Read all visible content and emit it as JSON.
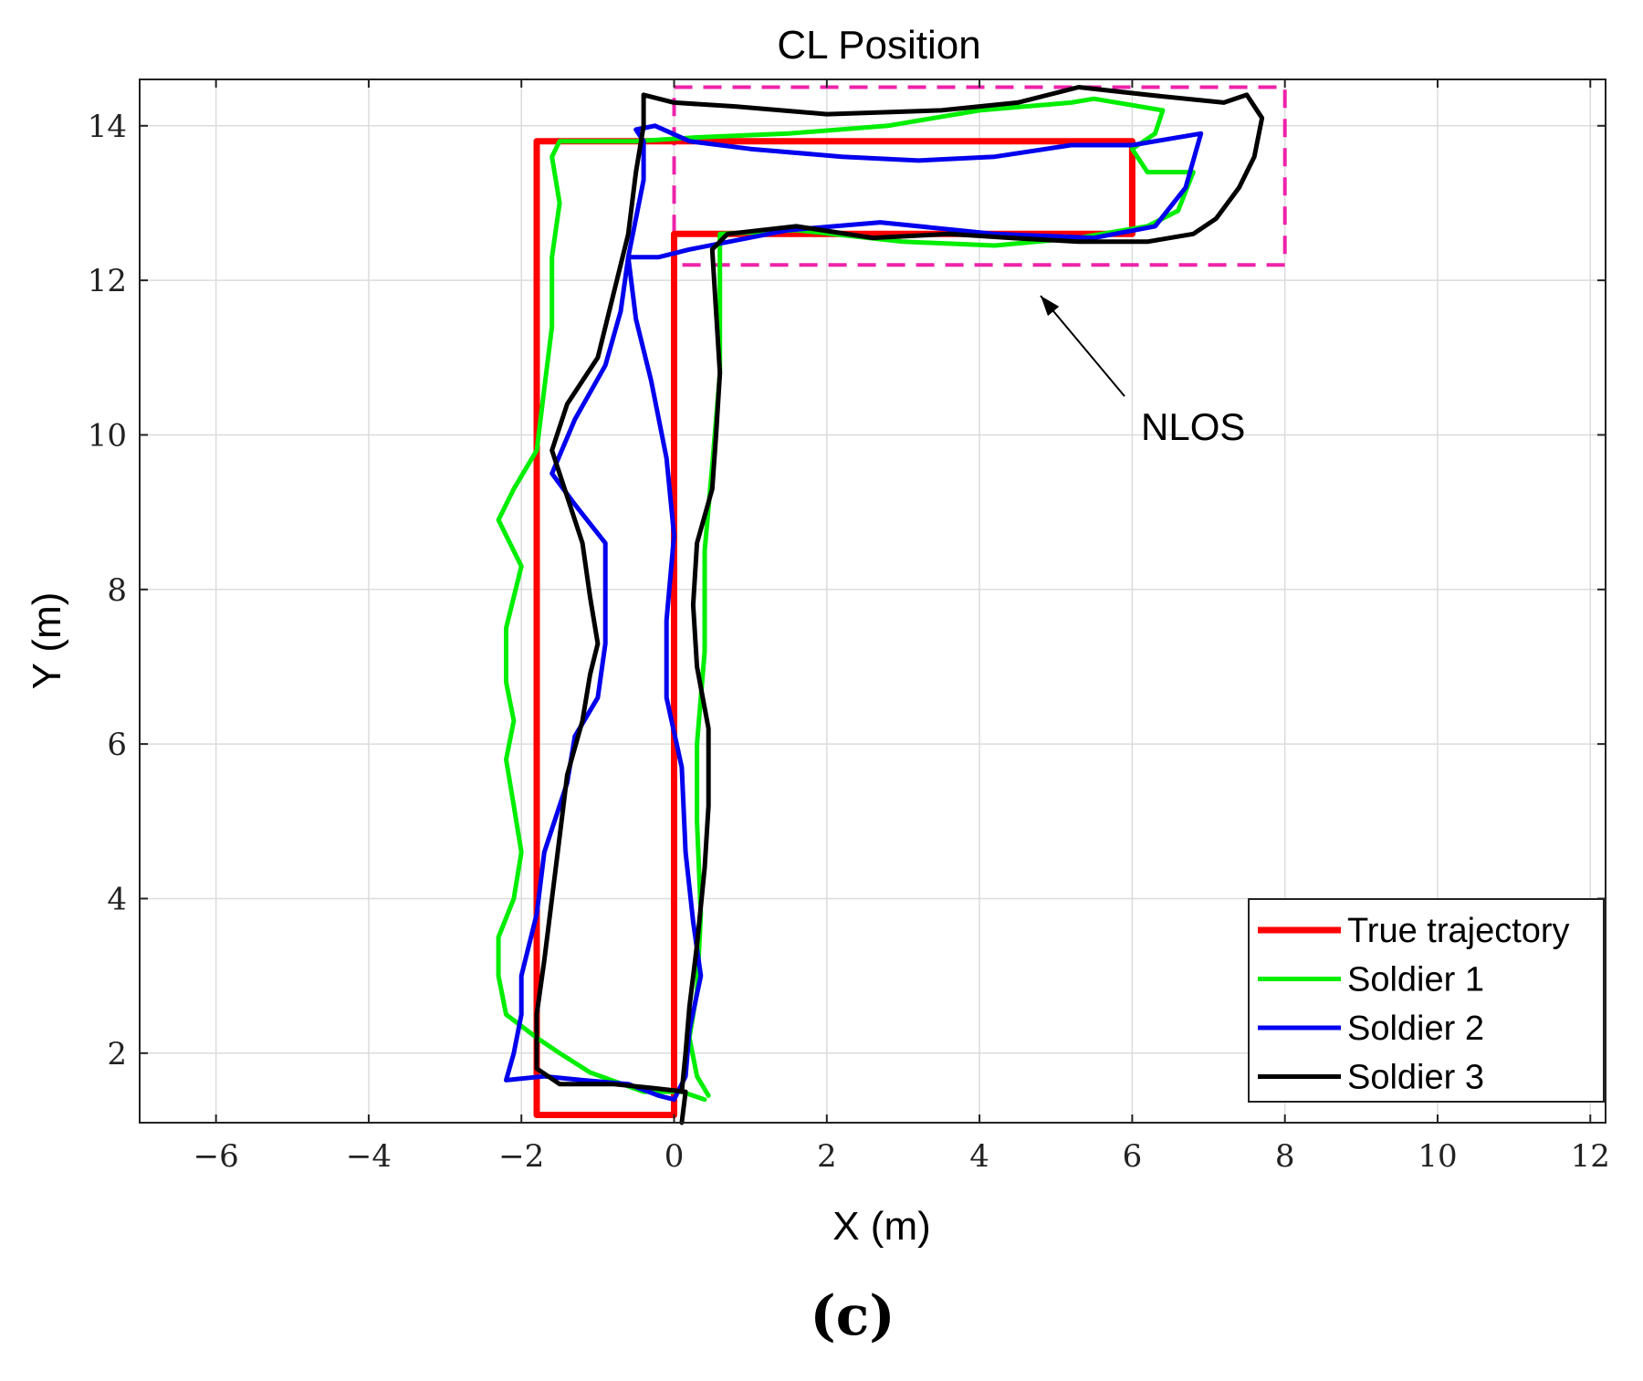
{
  "chart_data": {
    "type": "line",
    "title": "CL Position",
    "xlabel": "X (m)",
    "ylabel": "Y (m)",
    "xlim": [
      -7,
      12.2
    ],
    "ylim": [
      1.1,
      14.6
    ],
    "xticks": [
      -6,
      -4,
      -2,
      0,
      2,
      4,
      6,
      8,
      10,
      12
    ],
    "yticks": [
      2,
      4,
      6,
      8,
      10,
      12,
      14
    ],
    "xtick_labels": [
      "−6",
      "−4",
      "−2",
      "0",
      "2",
      "4",
      "6",
      "8",
      "10",
      "12"
    ],
    "ytick_labels": [
      "2",
      "4",
      "6",
      "8",
      "10",
      "12",
      "14"
    ],
    "grid": true,
    "legend_position": "bottom-right",
    "series": [
      {
        "name": "True trajectory",
        "color": "#ff0000",
        "points": [
          [
            -1.8,
            1.2
          ],
          [
            -1.8,
            13.8
          ],
          [
            6.0,
            13.8
          ],
          [
            6.0,
            12.6
          ],
          [
            0.0,
            12.6
          ],
          [
            0.0,
            1.2
          ],
          [
            -1.8,
            1.2
          ]
        ]
      },
      {
        "name": "Soldier 1",
        "color": "#00ee00",
        "points": [
          [
            0.4,
            1.4
          ],
          [
            0.1,
            1.5
          ],
          [
            -0.4,
            1.5
          ],
          [
            -1.1,
            1.75
          ],
          [
            -1.5,
            2.0
          ],
          [
            -1.8,
            2.2
          ],
          [
            -2.2,
            2.5
          ],
          [
            -2.3,
            3.0
          ],
          [
            -2.3,
            3.5
          ],
          [
            -2.1,
            4.0
          ],
          [
            -2.0,
            4.6
          ],
          [
            -2.1,
            5.2
          ],
          [
            -2.2,
            5.8
          ],
          [
            -2.1,
            6.3
          ],
          [
            -2.2,
            6.8
          ],
          [
            -2.2,
            7.5
          ],
          [
            -2.0,
            8.3
          ],
          [
            -2.3,
            8.9
          ],
          [
            -2.1,
            9.3
          ],
          [
            -1.8,
            9.8
          ],
          [
            -1.7,
            10.6
          ],
          [
            -1.6,
            11.4
          ],
          [
            -1.6,
            12.3
          ],
          [
            -1.5,
            13.0
          ],
          [
            -1.6,
            13.6
          ],
          [
            -1.5,
            13.8
          ],
          [
            -0.5,
            13.8
          ],
          [
            0.3,
            13.85
          ],
          [
            1.5,
            13.9
          ],
          [
            2.8,
            14.0
          ],
          [
            4.0,
            14.2
          ],
          [
            5.2,
            14.3
          ],
          [
            5.5,
            14.35
          ],
          [
            6.4,
            14.2
          ],
          [
            6.3,
            13.9
          ],
          [
            6.0,
            13.7
          ],
          [
            6.2,
            13.4
          ],
          [
            6.8,
            13.4
          ],
          [
            6.6,
            12.9
          ],
          [
            6.2,
            12.7
          ],
          [
            5.3,
            12.55
          ],
          [
            4.2,
            12.45
          ],
          [
            3.0,
            12.5
          ],
          [
            1.6,
            12.65
          ],
          [
            0.6,
            12.6
          ],
          [
            0.6,
            11.8
          ],
          [
            0.6,
            10.8
          ],
          [
            0.5,
            9.6
          ],
          [
            0.4,
            8.5
          ],
          [
            0.4,
            7.2
          ],
          [
            0.3,
            6.0
          ],
          [
            0.3,
            5.0
          ],
          [
            0.35,
            3.8
          ],
          [
            0.3,
            2.8
          ],
          [
            0.2,
            2.2
          ],
          [
            0.3,
            1.7
          ],
          [
            0.45,
            1.45
          ]
        ]
      },
      {
        "name": "Soldier 2",
        "color": "#0000ee",
        "points": [
          [
            0.0,
            1.4
          ],
          [
            -0.2,
            1.45
          ],
          [
            -0.6,
            1.6
          ],
          [
            -1.2,
            1.65
          ],
          [
            -1.7,
            1.7
          ],
          [
            -2.2,
            1.65
          ],
          [
            -2.1,
            2.0
          ],
          [
            -2.0,
            2.5
          ],
          [
            -2.0,
            3.0
          ],
          [
            -1.8,
            3.8
          ],
          [
            -1.7,
            4.6
          ],
          [
            -1.4,
            5.5
          ],
          [
            -1.3,
            6.1
          ],
          [
            -1.0,
            6.6
          ],
          [
            -0.9,
            7.3
          ],
          [
            -0.9,
            8.0
          ],
          [
            -0.9,
            8.6
          ],
          [
            -1.3,
            9.1
          ],
          [
            -1.6,
            9.5
          ],
          [
            -1.3,
            10.2
          ],
          [
            -0.9,
            10.9
          ],
          [
            -0.7,
            11.6
          ],
          [
            -0.6,
            12.3
          ],
          [
            -0.5,
            12.8
          ],
          [
            -0.4,
            13.3
          ],
          [
            -0.4,
            13.8
          ],
          [
            -0.5,
            13.95
          ],
          [
            -0.25,
            14.0
          ],
          [
            0.2,
            13.8
          ],
          [
            1.0,
            13.7
          ],
          [
            2.2,
            13.6
          ],
          [
            3.2,
            13.55
          ],
          [
            4.2,
            13.6
          ],
          [
            5.2,
            13.75
          ],
          [
            6.0,
            13.75
          ],
          [
            6.9,
            13.9
          ],
          [
            6.7,
            13.2
          ],
          [
            6.3,
            12.7
          ],
          [
            5.5,
            12.55
          ],
          [
            4.2,
            12.6
          ],
          [
            2.7,
            12.75
          ],
          [
            1.5,
            12.65
          ],
          [
            0.2,
            12.4
          ],
          [
            -0.2,
            12.3
          ],
          [
            -0.6,
            12.3
          ],
          [
            -0.5,
            11.5
          ],
          [
            -0.3,
            10.7
          ],
          [
            -0.1,
            9.7
          ],
          [
            0.0,
            8.7
          ],
          [
            -0.1,
            7.6
          ],
          [
            -0.1,
            6.6
          ],
          [
            0.1,
            5.7
          ],
          [
            0.15,
            4.6
          ],
          [
            0.25,
            3.7
          ],
          [
            0.35,
            3.0
          ],
          [
            0.2,
            2.3
          ],
          [
            0.15,
            1.7
          ],
          [
            0.0,
            1.4
          ]
        ]
      },
      {
        "name": "Soldier 3",
        "color": "#000000",
        "points": [
          [
            0.1,
            1.1
          ],
          [
            0.15,
            1.5
          ],
          [
            -0.3,
            1.55
          ],
          [
            -0.8,
            1.6
          ],
          [
            -1.5,
            1.6
          ],
          [
            -1.8,
            1.8
          ],
          [
            -1.8,
            2.5
          ],
          [
            -1.7,
            3.2
          ],
          [
            -1.6,
            4.0
          ],
          [
            -1.5,
            4.8
          ],
          [
            -1.4,
            5.6
          ],
          [
            -1.2,
            6.3
          ],
          [
            -1.1,
            6.9
          ],
          [
            -1.0,
            7.3
          ],
          [
            -1.1,
            7.9
          ],
          [
            -1.2,
            8.6
          ],
          [
            -1.4,
            9.2
          ],
          [
            -1.6,
            9.8
          ],
          [
            -1.4,
            10.4
          ],
          [
            -1.0,
            11.0
          ],
          [
            -0.8,
            11.8
          ],
          [
            -0.6,
            12.6
          ],
          [
            -0.5,
            13.4
          ],
          [
            -0.4,
            14.0
          ],
          [
            -0.4,
            14.4
          ],
          [
            0.0,
            14.3
          ],
          [
            0.8,
            14.25
          ],
          [
            2.0,
            14.15
          ],
          [
            3.5,
            14.2
          ],
          [
            4.5,
            14.3
          ],
          [
            5.3,
            14.5
          ],
          [
            6.2,
            14.4
          ],
          [
            7.2,
            14.3
          ],
          [
            7.5,
            14.4
          ],
          [
            7.7,
            14.1
          ],
          [
            7.6,
            13.6
          ],
          [
            7.4,
            13.2
          ],
          [
            7.1,
            12.8
          ],
          [
            6.8,
            12.6
          ],
          [
            6.2,
            12.5
          ],
          [
            5.3,
            12.5
          ],
          [
            4.4,
            12.55
          ],
          [
            3.6,
            12.6
          ],
          [
            2.6,
            12.55
          ],
          [
            1.6,
            12.7
          ],
          [
            0.7,
            12.6
          ],
          [
            0.5,
            12.4
          ],
          [
            0.55,
            11.6
          ],
          [
            0.6,
            10.8
          ],
          [
            0.55,
            10.0
          ],
          [
            0.5,
            9.3
          ],
          [
            0.3,
            8.6
          ],
          [
            0.25,
            7.8
          ],
          [
            0.3,
            7.0
          ],
          [
            0.45,
            6.2
          ],
          [
            0.45,
            5.2
          ],
          [
            0.4,
            4.4
          ],
          [
            0.3,
            3.4
          ],
          [
            0.2,
            2.6
          ],
          [
            0.15,
            2.0
          ],
          [
            0.1,
            1.5
          ]
        ]
      }
    ],
    "nlos_region": {
      "label": "NLOS",
      "color": "#ee22aa",
      "x_range": [
        0.0,
        8.0
      ],
      "y_range": [
        12.2,
        14.5
      ],
      "arrow_tail": [
        5.9,
        10.5
      ],
      "arrow_head": [
        4.8,
        11.8
      ]
    },
    "caption": "(c)"
  }
}
